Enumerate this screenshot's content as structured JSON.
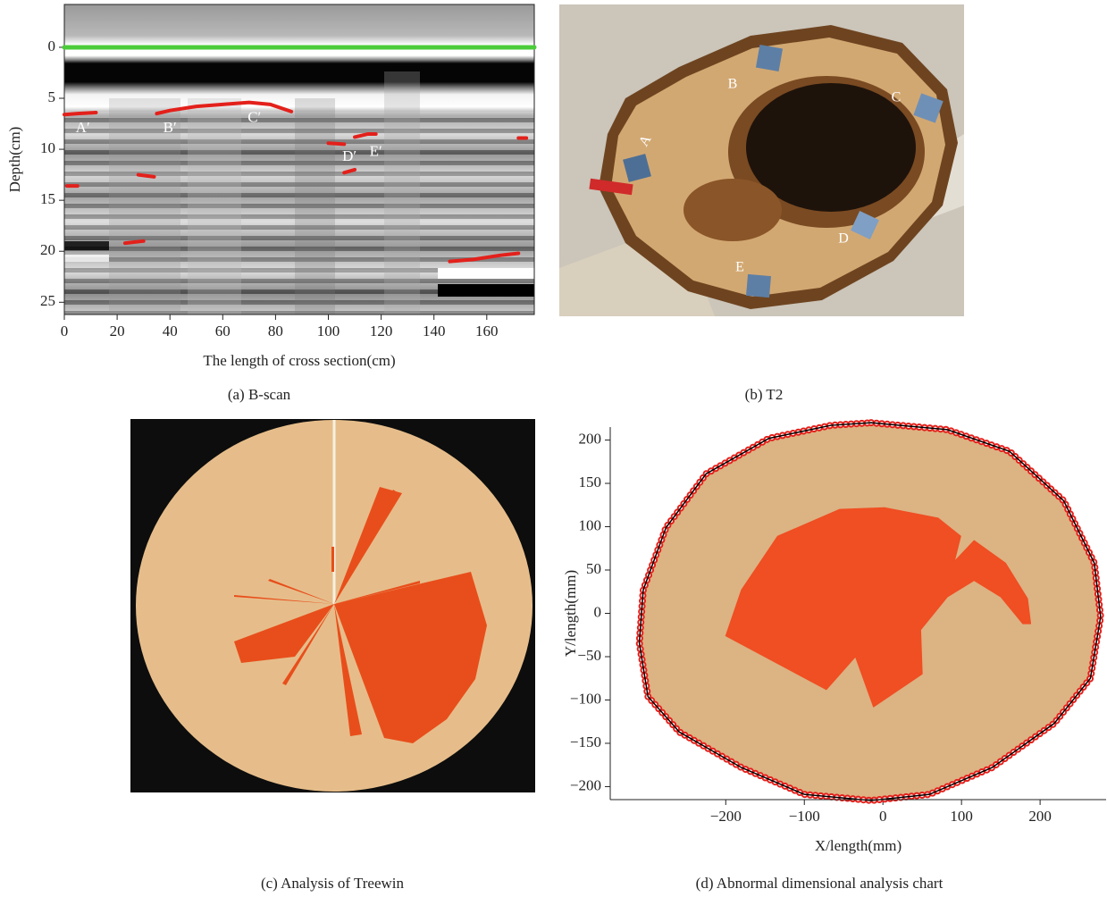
{
  "chart_data": [
    {
      "type": "line",
      "caption": "(a) B-scan",
      "xlabel": "The length of cross section(cm)",
      "ylabel": "Depth(cm)",
      "xlim": [
        0,
        178
      ],
      "ylim": [
        26.2,
        -4.2
      ],
      "xticks": [
        0,
        20,
        40,
        60,
        80,
        100,
        120,
        140,
        160
      ],
      "yticks": [
        0,
        5,
        10,
        15,
        20,
        25
      ],
      "annotations": [
        "A′",
        "B′",
        "C′",
        "D′",
        "E′"
      ],
      "series": [
        {
          "color": "#e3201b",
          "x": [
            0,
            5,
            12,
            null,
            35,
            40,
            50,
            60,
            70,
            78,
            86,
            null,
            100,
            106,
            null,
            110,
            115,
            118,
            null,
            146,
            155,
            165,
            172,
            null,
            1,
            5,
            null,
            28,
            34,
            null,
            23,
            30,
            null,
            106,
            110,
            null,
            172,
            175
          ],
          "values": [
            6.6,
            6.5,
            6.4,
            null,
            6.5,
            6.2,
            5.8,
            5.6,
            5.4,
            5.6,
            6.3,
            null,
            9.4,
            9.5,
            null,
            8.8,
            8.5,
            8.5,
            null,
            21.0,
            20.8,
            20.4,
            20.2,
            null,
            13.6,
            13.6,
            null,
            12.5,
            12.7,
            null,
            19.2,
            19.0,
            null,
            12.3,
            12.0,
            null,
            8.9,
            8.9
          ]
        },
        {
          "color": "#4ccc3a",
          "x": [
            0,
            178
          ],
          "values": [
            0,
            0
          ]
        }
      ]
    },
    {
      "type": "area",
      "caption": "(d) Abnormal dimensional analysis chart",
      "xlabel": "X/length(mm)",
      "ylabel": "Y/length(mm)",
      "xlim": [
        -347,
        284
      ],
      "ylim": [
        -215,
        215
      ],
      "xticks": [
        {
          "value": -200,
          "label": "−200"
        },
        {
          "value": -100,
          "label": "−100"
        },
        0,
        100,
        200
      ],
      "yticks": [
        {
          "value": -200,
          "label": "−200"
        },
        {
          "value": -150,
          "label": "−150"
        },
        {
          "value": -100,
          "label": "−100"
        },
        {
          "value": -50,
          "label": "−50"
        },
        0,
        50,
        100,
        150,
        200
      ],
      "series": [
        {
          "color": "#000000",
          "marker_color": "#e3201b",
          "fill": "#dcb383",
          "x": [
            -15,
            82,
            161,
            230,
            269,
            277,
            264,
            218,
            139,
            59,
            -15,
            -100,
            -180,
            -259,
            -299,
            -310,
            -305,
            -276,
            -225,
            -145,
            -66
          ],
          "values": [
            220,
            212,
            187,
            130,
            58,
            -4,
            -75,
            -127,
            -178,
            -209,
            -216,
            -209,
            -178,
            -137,
            -96,
            -34,
            27,
            99,
            161,
            202,
            217
          ]
        },
        {
          "color": "#f04e23",
          "fill": "#f04e23",
          "x": [
            -200,
            -180,
            -134,
            -55,
            2,
            70,
            99,
            91,
            116,
            156,
            184,
            188,
            178,
            150,
            116,
            82,
            48,
            50,
            -12,
            -35,
            -72
          ],
          "values": [
            -26,
            27,
            89,
            120,
            122,
            110,
            89,
            60,
            84,
            58,
            17,
            -12,
            -12,
            19,
            38,
            19,
            -19,
            -70,
            -108,
            -50,
            -88
          ]
        }
      ]
    }
  ],
  "panels": [
    {
      "caption": "(b) T2",
      "labels": [
        "A",
        "B",
        "C",
        "D",
        "E"
      ]
    },
    {
      "caption": "(c) Analysis of Treewin"
    }
  ]
}
